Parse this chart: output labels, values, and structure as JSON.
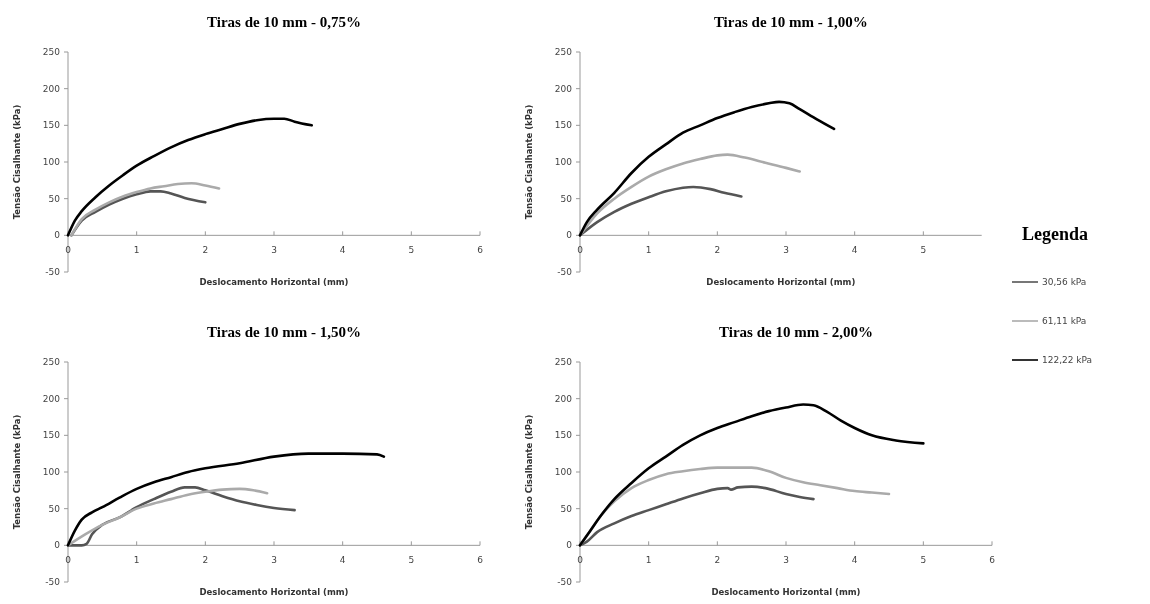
{
  "chart_data": [
    {
      "type": "line",
      "title": "Tiras de 10 mm - 0,75%",
      "xlabel": "Deslocamento Horizontal (mm)",
      "ylabel": "Tensão Cisalhante  (kPa)",
      "xlim": [
        0,
        6
      ],
      "xticks": [
        0,
        1,
        2,
        3,
        4,
        5,
        6
      ],
      "ylim": [
        -50,
        250
      ],
      "yticks": [
        -50,
        0,
        50,
        100,
        150,
        200,
        250
      ],
      "marker": "none",
      "line_style": "solid",
      "series": [
        {
          "color": "#555555",
          "x": [
            0.05,
            0.2,
            0.4,
            0.6,
            0.8,
            1,
            1.2,
            1.35,
            1.5,
            1.7,
            2
          ],
          "values": [
            0,
            20,
            32,
            42,
            50,
            56,
            60,
            60,
            57,
            51,
            45
          ]
        },
        {
          "color": "#aaaaaa",
          "x": [
            0.05,
            0.2,
            0.4,
            0.6,
            0.8,
            1,
            1.2,
            1.4,
            1.6,
            1.8,
            2,
            2.2
          ],
          "values": [
            0,
            22,
            35,
            45,
            53,
            59,
            64,
            67,
            70,
            71,
            68,
            64
          ]
        },
        {
          "color": "#000000",
          "x": [
            0,
            0.1,
            0.2,
            0.4,
            0.6,
            0.8,
            1,
            1.25,
            1.5,
            1.75,
            2,
            2.25,
            2.5,
            2.75,
            3,
            3.15,
            3.3,
            3.55
          ],
          "values": [
            0,
            20,
            33,
            52,
            68,
            82,
            95,
            108,
            120,
            130,
            138,
            145,
            152,
            157,
            159,
            159,
            155,
            150
          ]
        }
      ]
    },
    {
      "type": "line",
      "title": "Tiras de 10 mm - 1,00%",
      "xlabel": "Deslocamento Horizontal (mm)",
      "ylabel": "Tensão Cisalhante  (kPa)",
      "xlim": [
        0,
        5.85
      ],
      "xticks": [
        0,
        1,
        2,
        3,
        4,
        5
      ],
      "ylim": [
        -50,
        250
      ],
      "yticks": [
        -50,
        0,
        50,
        100,
        150,
        200,
        250
      ],
      "marker": "none",
      "line_style": "solid",
      "legend": "right",
      "legend_title": "Legenda",
      "series": [
        {
          "name": "30,56 kPa",
          "color": "#555555",
          "x": [
            0,
            0.25,
            0.5,
            0.75,
            1,
            1.25,
            1.5,
            1.65,
            1.9,
            2.1,
            2.35
          ],
          "values": [
            0,
            18,
            32,
            43,
            52,
            60,
            65,
            66,
            63,
            58,
            53
          ]
        },
        {
          "name": "61,11 kPa",
          "color": "#aaaaaa",
          "x": [
            0,
            0.25,
            0.5,
            0.75,
            1,
            1.25,
            1.5,
            1.75,
            2,
            2.15,
            2.4,
            2.7,
            3,
            3.2
          ],
          "values": [
            0,
            30,
            50,
            66,
            80,
            90,
            98,
            104,
            109,
            110,
            106,
            99,
            92,
            87
          ]
        },
        {
          "name": "122,22 kPa",
          "color": "#000000",
          "x": [
            0,
            0.1,
            0.25,
            0.5,
            0.75,
            1,
            1.25,
            1.5,
            1.75,
            2,
            2.25,
            2.5,
            2.75,
            2.9,
            3.05,
            3.2,
            3.45,
            3.7
          ],
          "values": [
            0,
            18,
            35,
            58,
            85,
            107,
            124,
            140,
            150,
            160,
            168,
            175,
            180,
            182,
            180,
            172,
            158,
            145
          ]
        }
      ]
    },
    {
      "type": "line",
      "title": "Tiras de 10 mm - 1,50%",
      "xlabel": "Deslocamento Horizontal (mm)",
      "ylabel": "Tensão Cisalhante  (kPa)",
      "xlim": [
        0,
        6
      ],
      "xticks": [
        0,
        1,
        2,
        3,
        4,
        5,
        6
      ],
      "ylim": [
        -50,
        250
      ],
      "yticks": [
        -50,
        0,
        50,
        100,
        150,
        200,
        250
      ],
      "marker": "none",
      "line_style": "solid",
      "series": [
        {
          "color": "#555555",
          "x": [
            0,
            0.2,
            0.27,
            0.35,
            0.5,
            0.75,
            1,
            1.25,
            1.5,
            1.7,
            1.85,
            2,
            2.25,
            2.5,
            2.75,
            3,
            3.3
          ],
          "values": [
            0,
            0,
            2,
            15,
            28,
            38,
            52,
            63,
            73,
            79,
            79,
            75,
            67,
            60,
            55,
            51,
            48
          ]
        },
        {
          "color": "#aaaaaa",
          "x": [
            0,
            0.25,
            0.5,
            0.75,
            1,
            1.25,
            1.5,
            1.75,
            2,
            2.25,
            2.5,
            2.7,
            2.9
          ],
          "values": [
            0,
            15,
            28,
            38,
            50,
            57,
            63,
            69,
            73,
            76,
            77,
            75,
            71
          ]
        },
        {
          "color": "#000000",
          "x": [
            0,
            0.1,
            0.2,
            0.35,
            0.5,
            0.75,
            1,
            1.25,
            1.5,
            1.75,
            2,
            2.5,
            3,
            3.5,
            4,
            4.5,
            4.6
          ],
          "values": [
            0,
            20,
            35,
            45,
            52,
            65,
            77,
            86,
            93,
            100,
            105,
            112,
            121,
            125,
            125,
            124,
            121
          ]
        }
      ]
    },
    {
      "type": "line",
      "title": "Tiras de 10 mm - 2,00%",
      "xlabel": "Deslocamento Horizontal (mm)",
      "ylabel": "Tensão Cisalhante  (kPa)",
      "xlim": [
        0,
        6
      ],
      "xticks": [
        0,
        1,
        2,
        3,
        4,
        5,
        6
      ],
      "ylim": [
        -50,
        250
      ],
      "yticks": [
        -50,
        0,
        50,
        100,
        150,
        200,
        250
      ],
      "marker": "none",
      "line_style": "solid",
      "series": [
        {
          "color": "#555555",
          "x": [
            0,
            0.1,
            0.25,
            0.5,
            0.75,
            1,
            1.25,
            1.5,
            1.75,
            2,
            2.15,
            2.2,
            2.3,
            2.5,
            2.7,
            3,
            3.2,
            3.4
          ],
          "values": [
            0,
            5,
            18,
            30,
            40,
            48,
            56,
            64,
            71,
            77,
            78,
            76,
            79,
            80,
            78,
            70,
            66,
            63
          ]
        },
        {
          "color": "#aaaaaa",
          "x": [
            0,
            0.15,
            0.3,
            0.5,
            0.75,
            1,
            1.25,
            1.5,
            1.75,
            2,
            2.5,
            2.75,
            3,
            3.25,
            3.5,
            3.75,
            4,
            4.25,
            4.5
          ],
          "values": [
            0,
            20,
            40,
            60,
            78,
            89,
            97,
            101,
            104,
            106,
            106,
            101,
            92,
            86,
            82,
            78,
            74,
            72,
            70
          ]
        },
        {
          "color": "#000000",
          "x": [
            0,
            0.15,
            0.3,
            0.5,
            0.75,
            1,
            1.25,
            1.5,
            1.75,
            2,
            2.25,
            2.5,
            2.75,
            3,
            3.25,
            3.4,
            3.6,
            3.8,
            4,
            4.25,
            4.6,
            5
          ],
          "values": [
            0,
            20,
            40,
            63,
            85,
            105,
            121,
            137,
            150,
            160,
            168,
            176,
            183,
            188,
            192,
            191,
            182,
            170,
            160,
            150,
            143,
            139
          ]
        }
      ]
    }
  ]
}
